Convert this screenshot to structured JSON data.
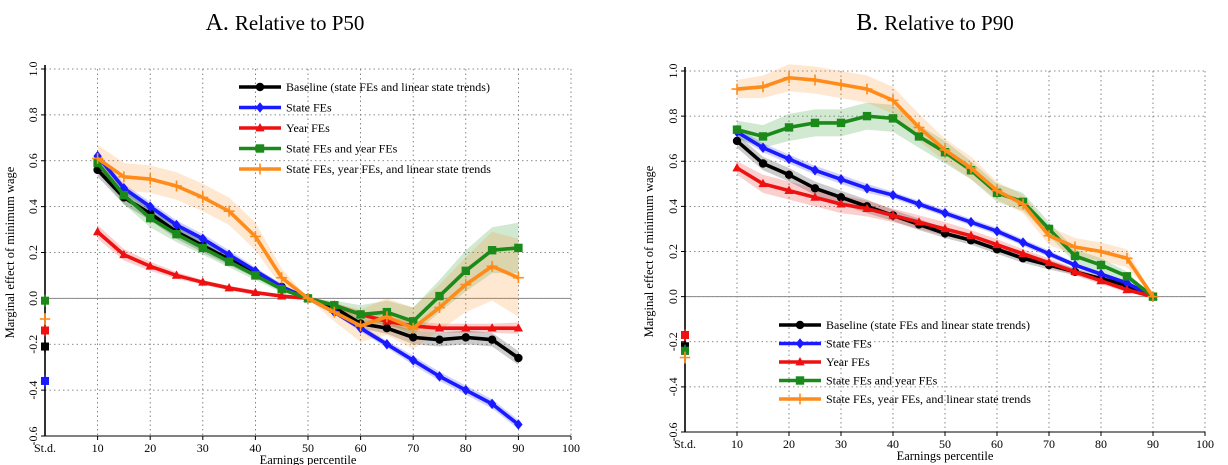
{
  "chart_data": [
    {
      "type": "line",
      "panel_label": "A.",
      "title": "Relative to P50",
      "xlabel": "Earnings percentile",
      "ylabel": "Marginal effect of minimum wage",
      "xlim": [
        0,
        100
      ],
      "ylim": [
        -0.6,
        1.0
      ],
      "x_ticks": [
        10,
        20,
        30,
        40,
        50,
        60,
        70,
        80,
        90,
        100
      ],
      "x_std_label": "St.d.",
      "y_ticks": [
        -0.6,
        -0.4,
        -0.2,
        0.0,
        0.2,
        0.4,
        0.6,
        0.8,
        1.0
      ],
      "y_tick_labels": [
        "-0.6",
        "-0.4",
        "-0.2",
        "0.0",
        "0.2",
        "0.4",
        "0.6",
        "0.8",
        "1.0"
      ],
      "grid": true,
      "legend_position": "top-right",
      "x": [
        10,
        15,
        20,
        25,
        30,
        35,
        40,
        45,
        50,
        55,
        60,
        65,
        70,
        75,
        80,
        85,
        90
      ],
      "series": [
        {
          "name": "Baseline (state FEs and linear state trends)",
          "color": "#000000",
          "marker": "circle",
          "values": [
            0.56,
            0.44,
            0.37,
            0.29,
            0.23,
            0.17,
            0.11,
            0.05,
            0.0,
            -0.04,
            -0.11,
            -0.13,
            -0.17,
            -0.18,
            -0.17,
            -0.18,
            -0.26
          ],
          "band": [
            0.03,
            0.03,
            0.03,
            0.03,
            0.03,
            0.025,
            0.02,
            0.015,
            0.0,
            0.015,
            0.02,
            0.025,
            0.03,
            0.03,
            0.03,
            0.03,
            0.03
          ],
          "std_value": -0.21
        },
        {
          "name": "State FEs",
          "color": "#1a1aff",
          "marker": "diamond",
          "values": [
            0.62,
            0.48,
            0.4,
            0.32,
            0.26,
            0.19,
            0.12,
            0.05,
            0.0,
            -0.06,
            -0.13,
            -0.2,
            -0.27,
            -0.34,
            -0.4,
            -0.46,
            -0.55
          ],
          "band": [
            0.02,
            0.02,
            0.02,
            0.02,
            0.02,
            0.02,
            0.015,
            0.01,
            0.0,
            0.01,
            0.015,
            0.015,
            0.02,
            0.02,
            0.02,
            0.02,
            0.02
          ],
          "std_value": -0.36
        },
        {
          "name": "Year FEs",
          "color": "#ee1111",
          "marker": "triangle",
          "values": [
            0.29,
            0.19,
            0.14,
            0.1,
            0.07,
            0.045,
            0.025,
            0.01,
            0.0,
            -0.03,
            -0.07,
            -0.1,
            -0.12,
            -0.13,
            -0.13,
            -0.13,
            -0.13
          ],
          "band": [
            0.03,
            0.025,
            0.02,
            0.015,
            0.01,
            0.01,
            0.01,
            0.005,
            0.0,
            0.01,
            0.015,
            0.02,
            0.02,
            0.02,
            0.02,
            0.02,
            0.025
          ],
          "std_value": -0.14
        },
        {
          "name": "State FEs and year FEs",
          "color": "#1b8a1b",
          "marker": "square",
          "values": [
            0.59,
            0.45,
            0.35,
            0.28,
            0.22,
            0.16,
            0.1,
            0.04,
            0.0,
            -0.03,
            -0.07,
            -0.06,
            -0.1,
            0.01,
            0.12,
            0.21,
            0.22
          ],
          "band": [
            0.04,
            0.04,
            0.04,
            0.035,
            0.03,
            0.025,
            0.02,
            0.015,
            0.0,
            0.02,
            0.04,
            0.05,
            0.06,
            0.07,
            0.09,
            0.1,
            0.11
          ],
          "std_value": -0.01
        },
        {
          "name": "State FEs, year FEs, and linear state trends",
          "color": "#ff8c1a",
          "marker": "plus",
          "values": [
            0.61,
            0.53,
            0.52,
            0.49,
            0.44,
            0.38,
            0.27,
            0.09,
            0.0,
            -0.06,
            -0.12,
            -0.08,
            -0.13,
            -0.04,
            0.06,
            0.14,
            0.09
          ],
          "band": [
            0.06,
            0.06,
            0.06,
            0.06,
            0.06,
            0.06,
            0.06,
            0.04,
            0.0,
            0.04,
            0.07,
            0.08,
            0.09,
            0.1,
            0.12,
            0.15,
            0.17
          ],
          "std_value": -0.09
        }
      ]
    },
    {
      "type": "line",
      "panel_label": "B.",
      "title": "Relative to P90",
      "xlabel": "Earnings percentile",
      "ylabel": "Marginal effect of minimum wage",
      "xlim": [
        0,
        100
      ],
      "ylim": [
        -0.6,
        1.0
      ],
      "x_ticks": [
        10,
        20,
        30,
        40,
        50,
        60,
        70,
        80,
        90,
        100
      ],
      "x_std_label": "St.d.",
      "y_ticks": [
        -0.6,
        -0.4,
        -0.2,
        0.0,
        0.2,
        0.4,
        0.6,
        0.8,
        1.0
      ],
      "y_tick_labels": [
        "-0.6",
        "-0.4",
        "-0.2",
        "0.0",
        "0.2",
        "0.4",
        "0.6",
        "0.8",
        "1.0"
      ],
      "grid": true,
      "legend_position": "bottom-right",
      "x": [
        10,
        15,
        20,
        25,
        30,
        35,
        40,
        45,
        50,
        55,
        60,
        65,
        70,
        75,
        80,
        85,
        90
      ],
      "series": [
        {
          "name": "Baseline (state FEs and linear state trends)",
          "color": "#000000",
          "marker": "circle",
          "values": [
            0.69,
            0.59,
            0.54,
            0.48,
            0.44,
            0.4,
            0.36,
            0.32,
            0.28,
            0.25,
            0.21,
            0.17,
            0.14,
            0.11,
            0.08,
            0.05,
            0.0
          ],
          "band": [
            0.03,
            0.03,
            0.03,
            0.03,
            0.03,
            0.03,
            0.025,
            0.025,
            0.02,
            0.02,
            0.02,
            0.02,
            0.02,
            0.015,
            0.015,
            0.01,
            0.0
          ],
          "std_value": -0.22
        },
        {
          "name": "State FEs",
          "color": "#1a1aff",
          "marker": "diamond",
          "values": [
            0.73,
            0.66,
            0.61,
            0.56,
            0.52,
            0.48,
            0.45,
            0.41,
            0.37,
            0.33,
            0.29,
            0.24,
            0.19,
            0.14,
            0.1,
            0.06,
            0.0
          ],
          "band": [
            0.02,
            0.02,
            0.02,
            0.02,
            0.02,
            0.02,
            0.015,
            0.015,
            0.015,
            0.015,
            0.015,
            0.015,
            0.015,
            0.01,
            0.01,
            0.01,
            0.0
          ],
          "std_value": -0.24
        },
        {
          "name": "Year FEs",
          "color": "#ee1111",
          "marker": "triangle",
          "values": [
            0.57,
            0.5,
            0.47,
            0.44,
            0.41,
            0.39,
            0.36,
            0.33,
            0.3,
            0.27,
            0.23,
            0.19,
            0.15,
            0.11,
            0.07,
            0.03,
            0.0
          ],
          "band": [
            0.03,
            0.04,
            0.04,
            0.04,
            0.04,
            0.035,
            0.03,
            0.03,
            0.03,
            0.025,
            0.025,
            0.02,
            0.02,
            0.015,
            0.015,
            0.01,
            0.0
          ],
          "std_value": -0.17
        },
        {
          "name": "State FEs and year FEs",
          "color": "#1b8a1b",
          "marker": "square",
          "values": [
            0.74,
            0.71,
            0.75,
            0.77,
            0.77,
            0.8,
            0.79,
            0.71,
            0.64,
            0.56,
            0.46,
            0.42,
            0.3,
            0.18,
            0.14,
            0.09,
            0.0
          ],
          "band": [
            0.04,
            0.05,
            0.06,
            0.06,
            0.06,
            0.06,
            0.06,
            0.05,
            0.05,
            0.04,
            0.04,
            0.04,
            0.03,
            0.03,
            0.03,
            0.02,
            0.0
          ],
          "std_value": -0.24
        },
        {
          "name": "State FEs, year FEs, and linear state trends",
          "color": "#ff8c1a",
          "marker": "plus",
          "values": [
            0.92,
            0.93,
            0.97,
            0.96,
            0.94,
            0.92,
            0.87,
            0.75,
            0.65,
            0.57,
            0.47,
            0.41,
            0.27,
            0.22,
            0.2,
            0.17,
            0.0
          ],
          "band": [
            0.04,
            0.05,
            0.06,
            0.06,
            0.06,
            0.06,
            0.06,
            0.06,
            0.05,
            0.05,
            0.04,
            0.04,
            0.04,
            0.04,
            0.04,
            0.04,
            0.0
          ],
          "std_value": -0.27
        }
      ]
    }
  ]
}
